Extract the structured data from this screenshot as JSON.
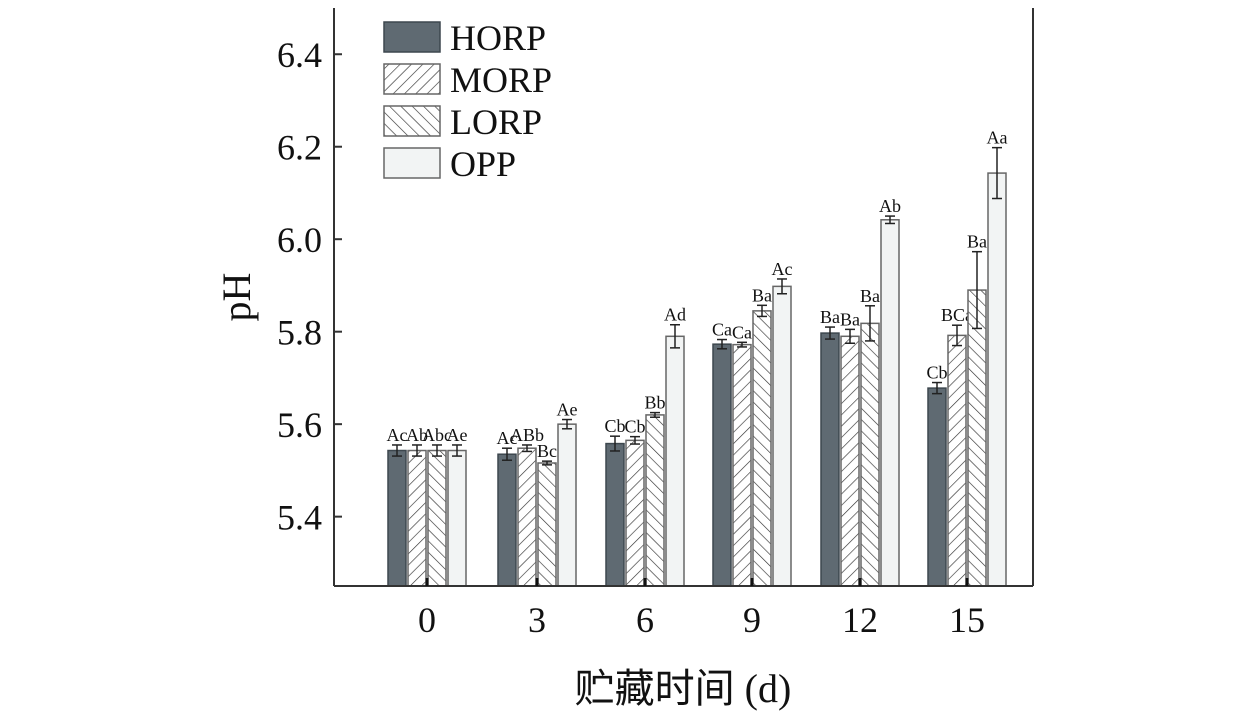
{
  "chart_data": {
    "type": "bar",
    "title": "",
    "xlabel": "贮藏时间 (d)",
    "ylabel": "pH",
    "ylim": [
      5.25,
      6.5
    ],
    "yticks": [
      "5.4",
      "5.6",
      "5.8",
      "6.0",
      "6.2",
      "6.4"
    ],
    "categories": [
      "0",
      "3",
      "6",
      "9",
      "12",
      "15"
    ],
    "legend_position": "top-left",
    "series": [
      {
        "name": "HORP",
        "pattern": "solid",
        "color": "#5f6a72",
        "values": [
          5.543,
          5.535,
          5.558,
          5.773,
          5.797,
          5.678
        ],
        "errors": [
          0.012,
          0.013,
          0.016,
          0.01,
          0.013,
          0.012
        ],
        "labels": [
          "Ac",
          "Ac",
          "Cb",
          "Ca",
          "Ba",
          "Cb"
        ]
      },
      {
        "name": "MORP",
        "pattern": "diagonal-forward",
        "color": "#ffffff",
        "values": [
          5.543,
          5.548,
          5.565,
          5.772,
          5.79,
          5.792
        ],
        "errors": [
          0.012,
          0.007,
          0.008,
          0.005,
          0.015,
          0.022
        ],
        "labels": [
          "Ab",
          "ABb",
          "Cb",
          "Ca",
          "Ba",
          "BCa"
        ]
      },
      {
        "name": "LORP",
        "pattern": "diagonal-back",
        "color": "#ffffff",
        "values": [
          5.543,
          5.516,
          5.62,
          5.845,
          5.818,
          5.89
        ],
        "errors": [
          0.012,
          0.004,
          0.005,
          0.012,
          0.038,
          0.083
        ],
        "labels": [
          "Abc",
          "Bc",
          "Bb",
          "Ba",
          "Ba",
          "Ba"
        ]
      },
      {
        "name": "OPP",
        "pattern": "light",
        "color": "#f2f4f4",
        "values": [
          5.543,
          5.6,
          5.79,
          5.898,
          6.042,
          6.143
        ],
        "errors": [
          0.012,
          0.01,
          0.025,
          0.016,
          0.008,
          0.055
        ],
        "labels": [
          "Ae",
          "Ae",
          "Ad",
          "Ac",
          "Ab",
          "Aa"
        ]
      }
    ]
  }
}
